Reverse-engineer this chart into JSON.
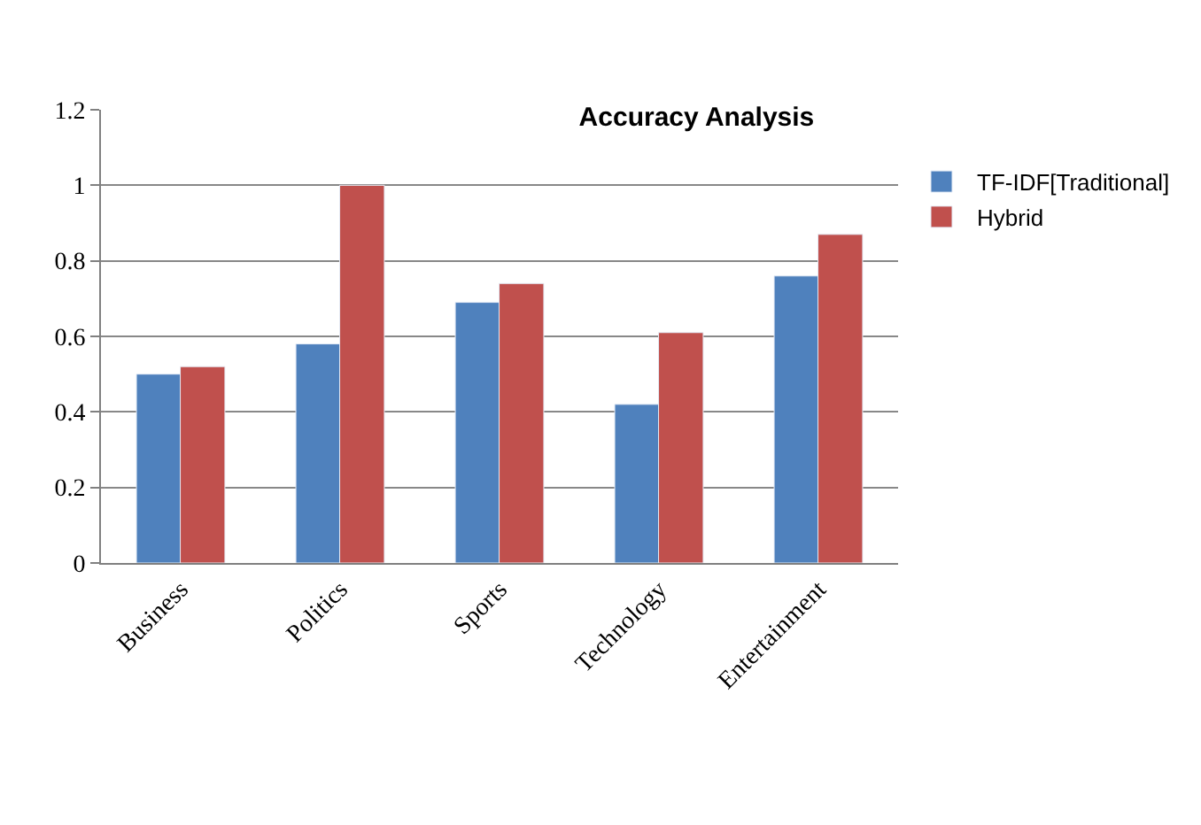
{
  "chart_data": {
    "type": "bar",
    "title": "Accuracy Analysis",
    "categories": [
      "Business",
      "Politics",
      "Sports",
      "Technology",
      "Entertainment"
    ],
    "series": [
      {
        "name": "TF-IDF[Traditional]",
        "color": "#4f81bd",
        "values": [
          0.5,
          0.58,
          0.69,
          0.42,
          0.76
        ]
      },
      {
        "name": "Hybrid",
        "color": "#c0504d",
        "values": [
          0.52,
          1.0,
          0.74,
          0.61,
          0.87
        ]
      }
    ],
    "ylim": [
      0,
      1.2
    ],
    "yticks": [
      0,
      0.2,
      0.4,
      0.6,
      0.8,
      1,
      1.2
    ],
    "grid": "y",
    "legend": "right"
  }
}
